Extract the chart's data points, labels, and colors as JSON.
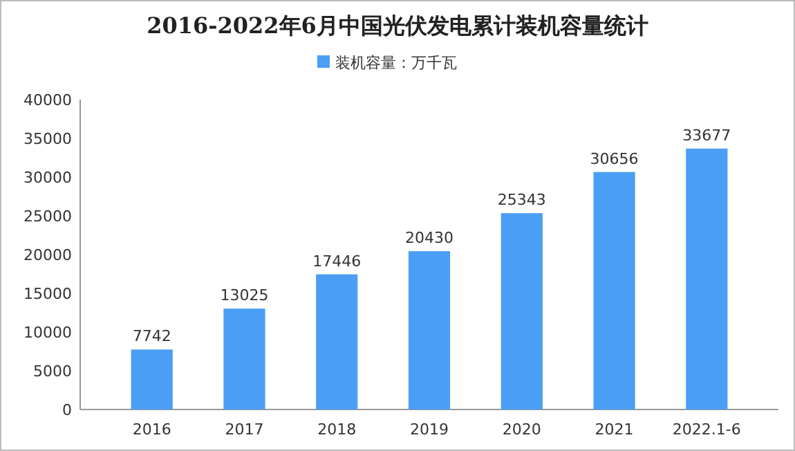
{
  "chart_data": {
    "type": "bar",
    "title": "2016-2022年6月中国光伏发电累计装机容量统计",
    "categories": [
      "2016",
      "2017",
      "2018",
      "2019",
      "2020",
      "2021",
      "2022.1-6"
    ],
    "series": [
      {
        "name": "装机容量：万千瓦",
        "color": "#4a9ff5",
        "values": [
          7742,
          13025,
          17446,
          20430,
          25343,
          30656,
          33677
        ]
      }
    ],
    "ylim": [
      0,
      40000
    ],
    "yticks": [
      0,
      5000,
      10000,
      15000,
      20000,
      25000,
      30000,
      35000,
      40000
    ],
    "data_labels": true,
    "legend": "top",
    "grid": false
  }
}
